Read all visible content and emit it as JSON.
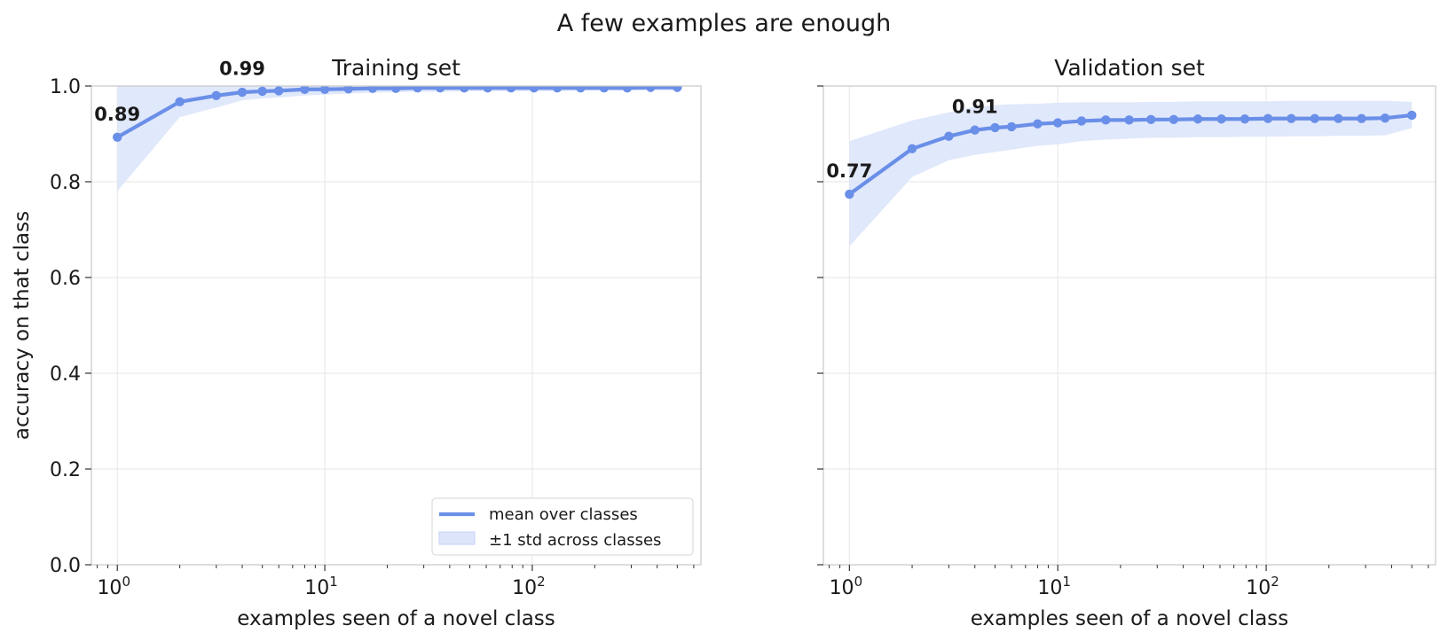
{
  "title": "A few examples are enough",
  "colors": {
    "line": "#6a8fe8",
    "band": "#dde5fb",
    "band_edge": "#c6d3f6",
    "grid": "#e6e6e6",
    "frame": "#c8c8c8"
  },
  "chart_data": [
    {
      "type": "line",
      "title": "Training set",
      "xlabel": "examples seen of a novel class",
      "ylabel": "accuracy on that class",
      "xscale": "log",
      "xlim": [
        0.75,
        650
      ],
      "ylim": [
        0.0,
        1.0
      ],
      "xtick_labels": [
        "10^0",
        "10^1",
        "10^2"
      ],
      "ytick_labels": [
        "0.0",
        "0.2",
        "0.4",
        "0.6",
        "0.8",
        "1.0"
      ],
      "grid": true,
      "legend": {
        "position": "lower-right",
        "entries": [
          "mean over classes",
          "±1 std across classes"
        ]
      },
      "annotations": [
        {
          "text": "0.89",
          "x": 1,
          "y": 0.893
        },
        {
          "text": "0.99",
          "x": 4,
          "y": 0.988
        }
      ],
      "x": [
        1,
        2,
        3,
        4,
        5,
        6,
        8,
        10,
        13,
        17,
        22,
        28,
        36,
        47,
        61,
        79,
        102,
        132,
        171,
        222,
        287,
        372,
        500
      ],
      "series": [
        {
          "name": "mean over classes",
          "values": [
            0.893,
            0.967,
            0.98,
            0.987,
            0.989,
            0.99,
            0.993,
            0.993,
            0.994,
            0.995,
            0.995,
            0.996,
            0.996,
            0.996,
            0.996,
            0.996,
            0.996,
            0.996,
            0.996,
            0.996,
            0.996,
            0.997,
            0.997
          ],
          "lower": [
            0.78,
            0.935,
            0.955,
            0.97,
            0.974,
            0.976,
            0.98,
            0.982,
            0.984,
            0.986,
            0.987,
            0.988,
            0.988,
            0.989,
            0.989,
            0.989,
            0.989,
            0.989,
            0.99,
            0.99,
            0.99,
            0.991,
            0.991
          ],
          "upper": [
            1.0,
            1.0,
            1.0,
            1.0,
            1.0,
            1.0,
            1.0,
            1.0,
            1.0,
            1.0,
            1.0,
            1.0,
            1.0,
            1.0,
            1.0,
            1.0,
            1.0,
            1.0,
            1.0,
            1.0,
            1.0,
            1.0,
            1.0
          ]
        }
      ]
    },
    {
      "type": "line",
      "title": "Validation set",
      "xlabel": "examples seen of a novel class",
      "ylabel": "",
      "xscale": "log",
      "xlim": [
        0.75,
        650
      ],
      "ylim": [
        0.0,
        1.0
      ],
      "xtick_labels": [
        "10^0",
        "10^1",
        "10^2"
      ],
      "ytick_labels": [],
      "grid": true,
      "annotations": [
        {
          "text": "0.77",
          "x": 1,
          "y": 0.774
        },
        {
          "text": "0.91",
          "x": 4,
          "y": 0.908
        }
      ],
      "x": [
        1,
        2,
        3,
        4,
        5,
        6,
        8,
        10,
        13,
        17,
        22,
        28,
        36,
        47,
        61,
        79,
        102,
        132,
        171,
        222,
        287,
        372,
        500
      ],
      "series": [
        {
          "name": "mean over classes",
          "values": [
            0.774,
            0.869,
            0.895,
            0.908,
            0.913,
            0.915,
            0.921,
            0.923,
            0.927,
            0.929,
            0.929,
            0.93,
            0.93,
            0.931,
            0.931,
            0.931,
            0.932,
            0.932,
            0.932,
            0.932,
            0.932,
            0.933,
            0.939
          ],
          "lower": [
            0.665,
            0.81,
            0.845,
            0.856,
            0.862,
            0.867,
            0.875,
            0.878,
            0.885,
            0.888,
            0.89,
            0.892,
            0.892,
            0.893,
            0.893,
            0.894,
            0.894,
            0.895,
            0.895,
            0.896,
            0.896,
            0.897,
            0.912
          ],
          "upper": [
            0.885,
            0.928,
            0.945,
            0.957,
            0.96,
            0.962,
            0.963,
            0.965,
            0.966,
            0.966,
            0.966,
            0.967,
            0.967,
            0.968,
            0.968,
            0.968,
            0.968,
            0.969,
            0.969,
            0.969,
            0.969,
            0.969,
            0.967
          ]
        }
      ]
    }
  ]
}
